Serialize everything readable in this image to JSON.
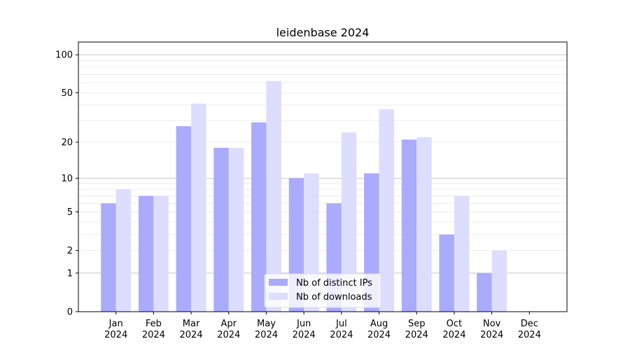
{
  "chart_data": {
    "type": "bar",
    "title": "leidenbase 2024",
    "xlabel": "",
    "ylabel": "",
    "yscale": "log(1+y)",
    "ylim": [
      0,
      126
    ],
    "yticks": [
      0,
      1,
      2,
      5,
      10,
      20,
      50,
      100
    ],
    "grid": true,
    "legend_position": "lower center",
    "categories": [
      "Jan\n2024",
      "Feb\n2024",
      "Mar\n2024",
      "Apr\n2024",
      "May\n2024",
      "Jun\n2024",
      "Jul\n2024",
      "Aug\n2024",
      "Sep\n2024",
      "Oct\n2024",
      "Nov\n2024",
      "Dec\n2024"
    ],
    "series": [
      {
        "name": "Nb of distinct IPs",
        "color": "#aaaaff",
        "values": [
          6,
          7,
          27,
          18,
          29,
          10,
          6,
          11,
          21,
          3,
          1,
          0
        ]
      },
      {
        "name": "Nb of downloads",
        "color": "#ddddff",
        "values": [
          8,
          7,
          41,
          18,
          62,
          11,
          24,
          37,
          22,
          7,
          2,
          0
        ]
      }
    ]
  }
}
